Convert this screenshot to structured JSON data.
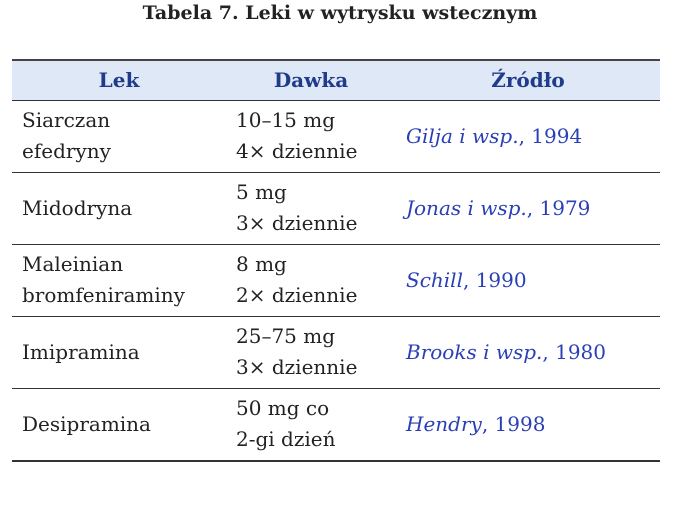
{
  "title": "Tabela 7. Leki w wytrysku wstecznym",
  "table": {
    "headers": [
      "Lek",
      "Dawka",
      "Źródło"
    ],
    "rows": [
      {
        "drug": [
          "Siarczan",
          "efedryny"
        ],
        "dose": [
          "10–15 mg",
          "4× dziennie"
        ],
        "source": {
          "author": "Gilja i wsp.",
          "rest": ", 1994"
        }
      },
      {
        "drug": [
          "Midodryna"
        ],
        "dose": [
          "5 mg",
          "3× dziennie"
        ],
        "source": {
          "author": "Jonas i wsp.",
          "rest": ", 1979"
        }
      },
      {
        "drug": [
          "Maleinian",
          "bromfeniraminy"
        ],
        "dose": [
          "8 mg",
          "2× dziennie"
        ],
        "source": {
          "author": "Schill",
          "rest": ", 1990"
        }
      },
      {
        "drug": [
          "Imipramina"
        ],
        "dose": [
          "25–75 mg",
          "3× dziennie"
        ],
        "source": {
          "author": "Brooks i wsp.",
          "rest": ", 1980"
        }
      },
      {
        "drug": [
          "Desipramina"
        ],
        "dose": [
          "50 mg co",
          "2-gi dzień"
        ],
        "source": {
          "author": "Hendry",
          "rest": ", 1998"
        }
      }
    ]
  }
}
